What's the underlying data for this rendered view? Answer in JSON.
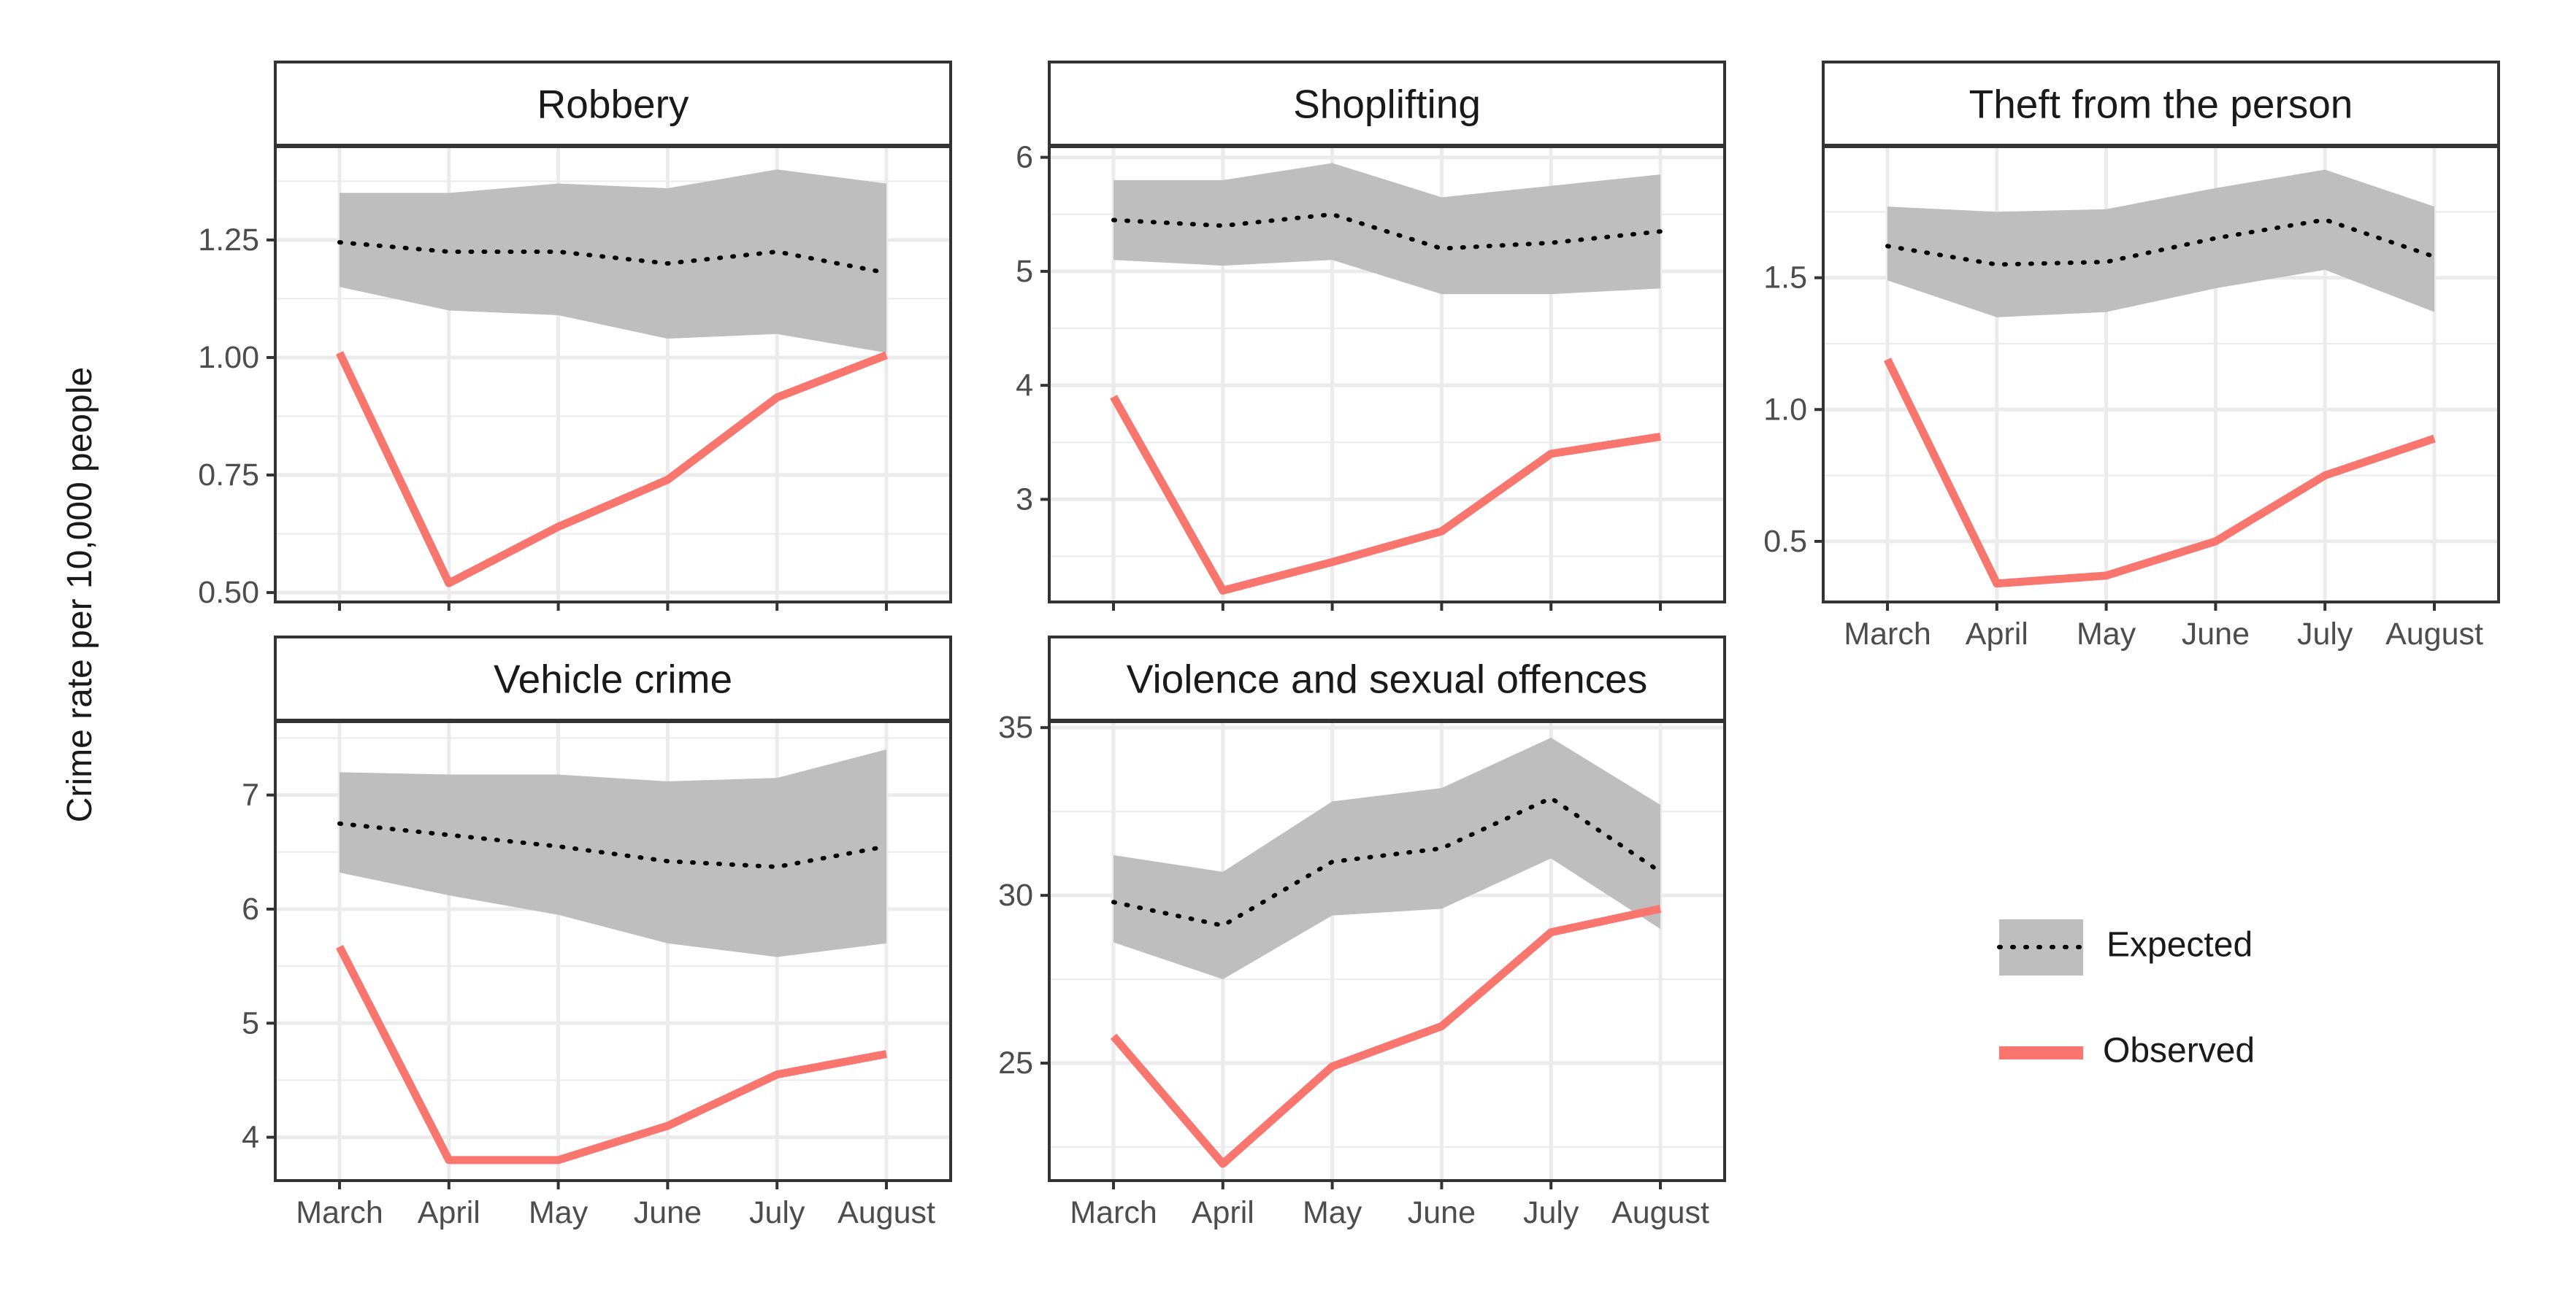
{
  "colors": {
    "observed": "#F8766D",
    "ribbon": "#BEBEBE",
    "expected_line": "#000000",
    "grid_major": "#EBEBEB",
    "panel_border": "#333333"
  },
  "chart_data": {
    "type": "line",
    "ylabel": "Crime rate per 10,000 people",
    "x": [
      "March",
      "April",
      "May",
      "June",
      "July",
      "August"
    ],
    "legend": {
      "placement": "bottom-right",
      "items": [
        {
          "name": "Expected",
          "style": "dotted line with grey ribbon"
        },
        {
          "name": "Observed",
          "style": "solid red line"
        }
      ]
    },
    "grid": true,
    "panels": [
      {
        "title": "Robbery",
        "ylim": [
          0.48,
          1.45
        ],
        "yticks": [
          0.5,
          0.75,
          1.0,
          1.25
        ],
        "yticklabels": [
          "0.50",
          "0.75",
          "1.00",
          "1.25"
        ],
        "series": [
          {
            "name": "Expected",
            "values": [
              1.245,
              1.225,
              1.225,
              1.2,
              1.225,
              1.18
            ]
          },
          {
            "name": "Expected lower",
            "values": [
              1.15,
              1.1,
              1.09,
              1.04,
              1.05,
              1.01
            ]
          },
          {
            "name": "Expected upper",
            "values": [
              1.35,
              1.35,
              1.37,
              1.36,
              1.4,
              1.37
            ]
          },
          {
            "name": "Observed",
            "values": [
              1.01,
              0.52,
              0.64,
              0.74,
              0.915,
              1.005
            ]
          }
        ]
      },
      {
        "title": "Shoplifting",
        "ylim": [
          2.1,
          6.1
        ],
        "yticks": [
          3,
          4,
          5,
          6
        ],
        "yticklabels": [
          "3",
          "4",
          "5",
          "6"
        ],
        "series": [
          {
            "name": "Expected",
            "values": [
              5.45,
              5.4,
              5.5,
              5.2,
              5.25,
              5.35
            ]
          },
          {
            "name": "Expected lower",
            "values": [
              5.1,
              5.05,
              5.1,
              4.8,
              4.8,
              4.85
            ]
          },
          {
            "name": "Expected upper",
            "values": [
              5.8,
              5.8,
              5.95,
              5.65,
              5.75,
              5.85
            ]
          },
          {
            "name": "Observed",
            "values": [
              3.9,
              2.2,
              2.45,
              2.72,
              3.4,
              3.55
            ]
          }
        ]
      },
      {
        "title": "Theft from the person",
        "ylim": [
          0.27,
          2.0
        ],
        "yticks": [
          0.5,
          1.0,
          1.5
        ],
        "yticklabels": [
          "0.5",
          "1.0",
          "1.5"
        ],
        "series": [
          {
            "name": "Expected",
            "values": [
              1.62,
              1.55,
              1.56,
              1.65,
              1.72,
              1.58
            ]
          },
          {
            "name": "Expected lower",
            "values": [
              1.49,
              1.35,
              1.37,
              1.46,
              1.53,
              1.37
            ]
          },
          {
            "name": "Expected upper",
            "values": [
              1.77,
              1.75,
              1.76,
              1.84,
              1.91,
              1.77
            ]
          },
          {
            "name": "Observed",
            "values": [
              1.19,
              0.34,
              0.37,
              0.5,
              0.75,
              0.89
            ]
          }
        ]
      },
      {
        "title": "Vehicle crime",
        "ylim": [
          3.62,
          7.65
        ],
        "yticks": [
          4,
          5,
          6,
          7
        ],
        "yticklabels": [
          "4",
          "5",
          "6",
          "7"
        ],
        "series": [
          {
            "name": "Expected",
            "values": [
              6.75,
              6.65,
              6.55,
              6.42,
              6.37,
              6.55
            ]
          },
          {
            "name": "Expected lower",
            "values": [
              6.32,
              6.12,
              5.95,
              5.7,
              5.58,
              5.7
            ]
          },
          {
            "name": "Expected upper",
            "values": [
              7.2,
              7.18,
              7.18,
              7.12,
              7.15,
              7.4
            ]
          },
          {
            "name": "Observed",
            "values": [
              5.67,
              3.8,
              3.8,
              4.1,
              4.55,
              4.73
            ]
          }
        ]
      },
      {
        "title": "Violence and sexual offences",
        "ylim": [
          21.5,
          35.2
        ],
        "yticks": [
          25,
          30,
          35
        ],
        "yticklabels": [
          "25",
          "30",
          "35"
        ],
        "series": [
          {
            "name": "Expected",
            "values": [
              29.8,
              29.1,
              31.0,
              31.4,
              32.9,
              30.7
            ]
          },
          {
            "name": "Expected lower",
            "values": [
              28.6,
              27.5,
              29.4,
              29.6,
              31.1,
              29.0
            ]
          },
          {
            "name": "Expected upper",
            "values": [
              31.2,
              30.7,
              32.8,
              33.2,
              34.7,
              32.7
            ]
          },
          {
            "name": "Observed",
            "values": [
              25.8,
              22.0,
              24.9,
              26.1,
              28.9,
              29.6
            ]
          }
        ]
      }
    ]
  }
}
